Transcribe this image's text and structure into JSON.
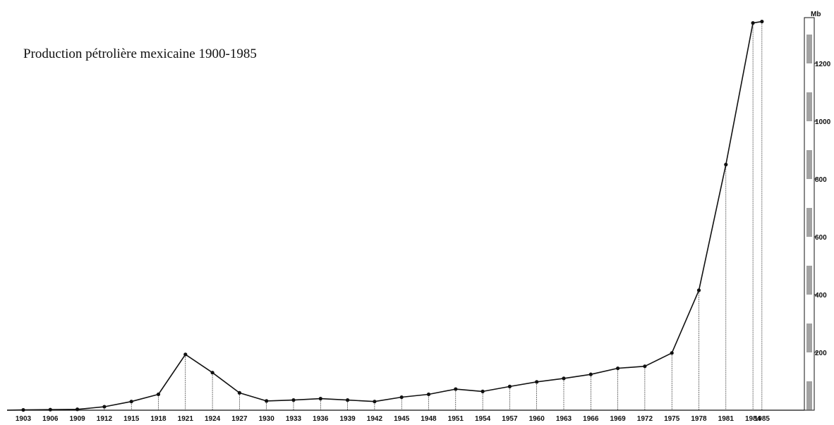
{
  "chart_data": {
    "type": "line",
    "title": "Production pétrolière mexicaine 1900-1985",
    "ylabel": "Mb",
    "ylim": [
      0,
      1320
    ],
    "yticks": [
      "200",
      "400",
      "600",
      "800",
      "1000",
      "1200"
    ],
    "grid": false,
    "drop_lines": true,
    "x_labels": [
      "1903",
      "1906",
      "1909",
      "1912",
      "1915",
      "1918",
      "1921",
      "1924",
      "1927",
      "1930",
      "1933",
      "1936",
      "1939",
      "1942",
      "1945",
      "1948",
      "1951",
      "1954",
      "1957",
      "1960",
      "1963",
      "1966",
      "1969",
      "1972",
      "1975",
      "1978",
      "1981",
      "1984",
      "1985"
    ],
    "x": [
      1903,
      1906,
      1909,
      1912,
      1915,
      1918,
      1921,
      1924,
      1927,
      1930,
      1933,
      1936,
      1939,
      1942,
      1945,
      1948,
      1951,
      1954,
      1957,
      1960,
      1963,
      1966,
      1969,
      1972,
      1975,
      1978,
      1981,
      1984,
      1985
    ],
    "series": [
      {
        "values": [
          1,
          2,
          3,
          12,
          30,
          55,
          193,
          130,
          60,
          32,
          35,
          40,
          35,
          30,
          45,
          55,
          73,
          65,
          82,
          98,
          110,
          124,
          145,
          152,
          198,
          415,
          850,
          1340,
          1345
        ]
      }
    ],
    "color": "#111111"
  }
}
